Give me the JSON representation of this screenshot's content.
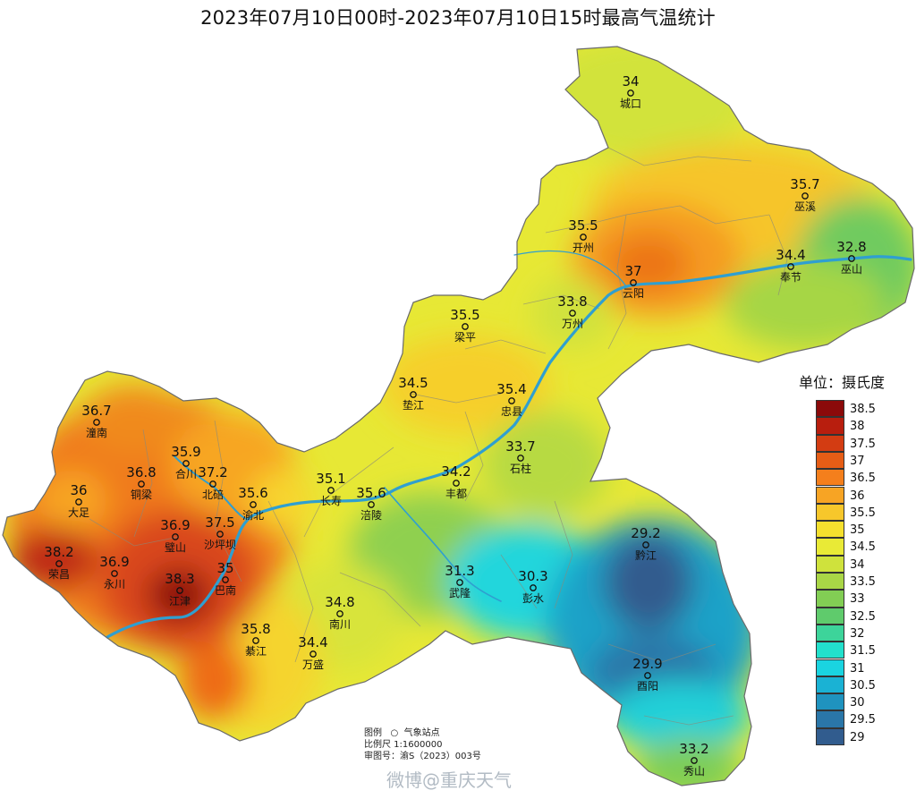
{
  "title": "2023年07月10日00时-2023年07月10日15时最高气温统计",
  "unit_label": "单位：摄氏度",
  "legend": [
    {
      "label": "38.5",
      "color": "#8b0a0a"
    },
    {
      "label": "38",
      "color": "#b81e0e"
    },
    {
      "label": "37.5",
      "color": "#d33c12"
    },
    {
      "label": "37",
      "color": "#e65d16"
    },
    {
      "label": "36.5",
      "color": "#f47f1c"
    },
    {
      "label": "36",
      "color": "#f7a424"
    },
    {
      "label": "35.5",
      "color": "#f7c72b"
    },
    {
      "label": "35",
      "color": "#f5e02e"
    },
    {
      "label": "34.5",
      "color": "#e9ea36"
    },
    {
      "label": "34",
      "color": "#cfe23c"
    },
    {
      "label": "33.5",
      "color": "#a9d646"
    },
    {
      "label": "33",
      "color": "#82ce54"
    },
    {
      "label": "32.5",
      "color": "#5fcb6c"
    },
    {
      "label": "32",
      "color": "#3dd49a"
    },
    {
      "label": "31.5",
      "color": "#22e0cc"
    },
    {
      "label": "31",
      "color": "#1ad4e0"
    },
    {
      "label": "30.5",
      "color": "#1ab2d4"
    },
    {
      "label": "30",
      "color": "#1f93bf"
    },
    {
      "label": "29.5",
      "color": "#2a76a8"
    },
    {
      "label": "29",
      "color": "#315c8e"
    }
  ],
  "stations": [
    {
      "name": "城口",
      "value": "34"
    },
    {
      "name": "巫溪",
      "value": "35.7"
    },
    {
      "name": "开州",
      "value": "35.5"
    },
    {
      "name": "云阳",
      "value": "37"
    },
    {
      "name": "奉节",
      "value": "34.4"
    },
    {
      "name": "巫山",
      "value": "32.8"
    },
    {
      "name": "万州",
      "value": "33.8"
    },
    {
      "name": "梁平",
      "value": "35.5"
    },
    {
      "name": "垫江",
      "value": "34.5"
    },
    {
      "name": "忠县",
      "value": "35.4"
    },
    {
      "name": "石柱",
      "value": "33.7"
    },
    {
      "name": "潼南",
      "value": "36.7"
    },
    {
      "name": "合川",
      "value": "35.9"
    },
    {
      "name": "铜梁",
      "value": "36.8"
    },
    {
      "name": "北碚",
      "value": "37.2"
    },
    {
      "name": "渝北",
      "value": "35.6"
    },
    {
      "name": "长寿",
      "value": "35.1"
    },
    {
      "name": "涪陵",
      "value": "35.6"
    },
    {
      "name": "丰都",
      "value": "34.2"
    },
    {
      "name": "大足",
      "value": "36"
    },
    {
      "name": "璧山",
      "value": "36.9"
    },
    {
      "name": "沙坪坝",
      "value": "37.5"
    },
    {
      "name": "荣昌",
      "value": "38.2"
    },
    {
      "name": "永川",
      "value": "36.9"
    },
    {
      "name": "江津",
      "value": "38.3"
    },
    {
      "name": "巴南",
      "value": "35"
    },
    {
      "name": "武隆",
      "value": "31.3"
    },
    {
      "name": "彭水",
      "value": "30.3"
    },
    {
      "name": "黔江",
      "value": "29.2"
    },
    {
      "name": "南川",
      "value": "34.8"
    },
    {
      "name": "綦江",
      "value": "35.8"
    },
    {
      "name": "万盛",
      "value": "34.4"
    },
    {
      "name": "酉阳",
      "value": "29.9"
    },
    {
      "name": "秀山",
      "value": "33.2"
    }
  ],
  "notes": {
    "legend_title": "图例",
    "legend_item": "气象站点",
    "scale": "比例尺   1:1600000",
    "approval": "审图号：渝S（2023）003号"
  },
  "watermark": "微博@重庆天气"
}
